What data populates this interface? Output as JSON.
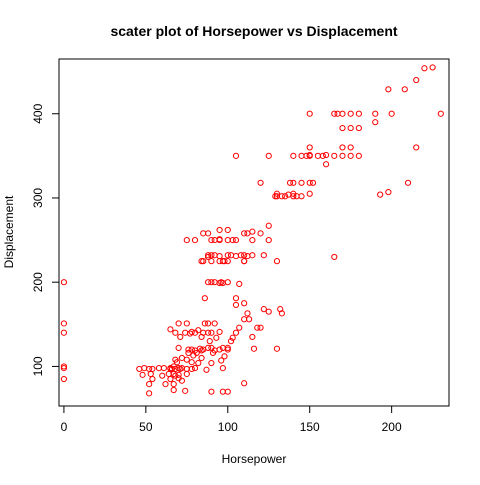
{
  "chart_data": {
    "type": "scatter",
    "title": "scater plot of Horsepower vs Displacement",
    "xlabel": "Horsepower",
    "ylabel": "Displacement",
    "xlim": [
      -3,
      235
    ],
    "ylim": [
      53,
      465
    ],
    "xticks": [
      0,
      50,
      100,
      150,
      200
    ],
    "yticks": [
      100,
      200,
      300,
      400
    ],
    "grid": false,
    "legend": "none",
    "marker": "open-circle",
    "color": "#ff0000",
    "series": [
      {
        "points": [
          [
            0,
            200
          ],
          [
            0,
            151
          ],
          [
            0,
            140
          ],
          [
            0,
            100
          ],
          [
            0,
            98
          ],
          [
            0,
            85
          ],
          [
            46,
            97
          ],
          [
            48,
            90
          ],
          [
            49,
            98
          ],
          [
            52,
            97
          ],
          [
            52,
            79
          ],
          [
            52,
            68
          ],
          [
            53,
            91
          ],
          [
            54,
            97
          ],
          [
            54,
            85
          ],
          [
            58,
            98
          ],
          [
            60,
            89
          ],
          [
            61,
            98
          ],
          [
            62,
            79
          ],
          [
            64,
            91
          ],
          [
            65,
            97
          ],
          [
            65,
            98
          ],
          [
            65,
            85
          ],
          [
            66,
            97
          ],
          [
            67,
            100
          ],
          [
            67,
            91
          ],
          [
            67,
            79
          ],
          [
            67,
            72
          ],
          [
            68,
            97
          ],
          [
            68,
            108
          ],
          [
            68,
            89
          ],
          [
            69,
            105
          ],
          [
            70,
            90
          ],
          [
            70,
            98
          ],
          [
            70,
            122
          ],
          [
            70,
            86
          ],
          [
            71,
            97
          ],
          [
            72,
            98
          ],
          [
            72,
            83
          ],
          [
            74,
            71
          ],
          [
            75,
            97
          ],
          [
            75,
            108
          ],
          [
            75,
            91
          ],
          [
            76,
            116
          ],
          [
            78,
            105
          ],
          [
            78,
            97
          ],
          [
            78,
            120
          ],
          [
            79,
            113
          ],
          [
            80,
            98
          ],
          [
            80,
            119
          ],
          [
            81,
            116
          ],
          [
            82,
            104
          ],
          [
            83,
            121
          ],
          [
            84,
            110
          ],
          [
            84,
            135
          ],
          [
            85,
            140
          ],
          [
            86,
            151
          ],
          [
            87,
            96
          ],
          [
            88,
            122
          ],
          [
            88,
            140
          ],
          [
            88,
            151
          ],
          [
            89,
            130
          ],
          [
            90,
            140
          ],
          [
            90,
            122
          ],
          [
            90,
            104
          ],
          [
            91,
            116
          ],
          [
            92,
            119
          ],
          [
            92,
            151
          ],
          [
            93,
            134
          ],
          [
            95,
            120
          ],
          [
            95,
            141
          ],
          [
            96,
            107
          ],
          [
            97,
            98
          ],
          [
            97,
            122
          ],
          [
            98,
            112
          ],
          [
            100,
            120
          ],
          [
            100,
            122
          ],
          [
            102,
            130
          ],
          [
            103,
            134
          ],
          [
            105,
            140
          ],
          [
            107,
            146
          ],
          [
            110,
            156
          ],
          [
            112,
            163
          ],
          [
            113,
            156
          ],
          [
            115,
            135
          ],
          [
            116,
            121
          ],
          [
            118,
            146
          ],
          [
            120,
            146
          ],
          [
            122,
            168
          ],
          [
            125,
            165
          ],
          [
            130,
            121
          ],
          [
            132,
            168
          ],
          [
            133,
            163
          ],
          [
            65,
            144
          ],
          [
            68,
            140
          ],
          [
            70,
            151
          ],
          [
            71,
            135
          ],
          [
            72,
            110
          ],
          [
            74,
            140
          ],
          [
            75,
            151
          ],
          [
            76,
            120
          ],
          [
            77,
            139
          ],
          [
            78,
            141
          ],
          [
            80,
            140
          ],
          [
            82,
            143
          ],
          [
            84,
            119
          ],
          [
            85,
            120
          ],
          [
            86,
            181
          ],
          [
            88,
            200
          ],
          [
            90,
            200
          ],
          [
            92,
            200
          ],
          [
            95,
            199
          ],
          [
            96,
            200
          ],
          [
            97,
            199
          ],
          [
            100,
            200
          ],
          [
            105,
            181
          ],
          [
            105,
            173
          ],
          [
            107,
            198
          ],
          [
            110,
            175
          ],
          [
            110,
            225
          ],
          [
            112,
            231
          ],
          [
            115,
            232
          ],
          [
            97,
            225
          ],
          [
            95,
            225
          ],
          [
            90,
            225
          ],
          [
            90,
            250
          ],
          [
            88,
            258
          ],
          [
            85,
            258
          ],
          [
            84,
            225
          ],
          [
            80,
            250
          ],
          [
            75,
            250
          ],
          [
            92,
            232
          ],
          [
            95,
            250
          ],
          [
            100,
            232
          ],
          [
            100,
            250
          ],
          [
            102,
            232
          ],
          [
            105,
            250
          ],
          [
            110,
            258
          ],
          [
            110,
            225
          ],
          [
            115,
            250
          ],
          [
            120,
            258
          ],
          [
            122,
            232
          ],
          [
            125,
            250
          ],
          [
            130,
            225
          ],
          [
            100,
            225
          ],
          [
            95,
            231
          ],
          [
            90,
            232
          ],
          [
            85,
            225
          ],
          [
            88,
            232
          ],
          [
            110,
            232
          ],
          [
            108,
            232
          ],
          [
            105,
            231
          ],
          [
            95,
            251
          ],
          [
            98,
            225
          ],
          [
            100,
            70
          ],
          [
            97,
            70
          ],
          [
            90,
            70
          ],
          [
            110,
            80
          ],
          [
            103,
            250
          ],
          [
            100,
            262
          ],
          [
            120,
            318
          ],
          [
            125,
            350
          ],
          [
            129,
            302
          ],
          [
            130,
            305
          ],
          [
            130,
            302
          ],
          [
            135,
            302
          ],
          [
            137,
            304
          ],
          [
            140,
            350
          ],
          [
            140,
            318
          ],
          [
            140,
            305
          ],
          [
            140,
            302
          ],
          [
            142,
            302
          ],
          [
            145,
            350
          ],
          [
            145,
            318
          ],
          [
            148,
            350
          ],
          [
            150,
            350
          ],
          [
            150,
            351
          ],
          [
            150,
            400
          ],
          [
            150,
            305
          ],
          [
            150,
            318
          ],
          [
            150,
            360
          ],
          [
            152,
            318
          ],
          [
            155,
            350
          ],
          [
            158,
            350
          ],
          [
            160,
            351
          ],
          [
            160,
            340
          ],
          [
            165,
            400
          ],
          [
            165,
            350
          ],
          [
            165,
            230
          ],
          [
            167,
            400
          ],
          [
            170,
            400
          ],
          [
            170,
            360
          ],
          [
            170,
            350
          ],
          [
            170,
            383
          ],
          [
            175,
            400
          ],
          [
            175,
            350
          ],
          [
            175,
            383
          ],
          [
            175,
            360
          ],
          [
            180,
            350
          ],
          [
            180,
            400
          ],
          [
            180,
            383
          ],
          [
            190,
            400
          ],
          [
            190,
            390
          ],
          [
            193,
            304
          ],
          [
            198,
            429
          ],
          [
            198,
            307
          ],
          [
            200,
            400
          ],
          [
            208,
            429
          ],
          [
            210,
            318
          ],
          [
            215,
            440
          ],
          [
            215,
            360
          ],
          [
            220,
            454
          ],
          [
            225,
            455
          ],
          [
            230,
            400
          ],
          [
            105,
            350
          ],
          [
            95,
            262
          ],
          [
            138,
            318
          ],
          [
            133,
            302
          ],
          [
            145,
            302
          ],
          [
            112,
            258
          ],
          [
            88,
            230
          ],
          [
            92,
            250
          ],
          [
            125,
            267
          ],
          [
            115,
            260
          ]
        ]
      }
    ]
  }
}
